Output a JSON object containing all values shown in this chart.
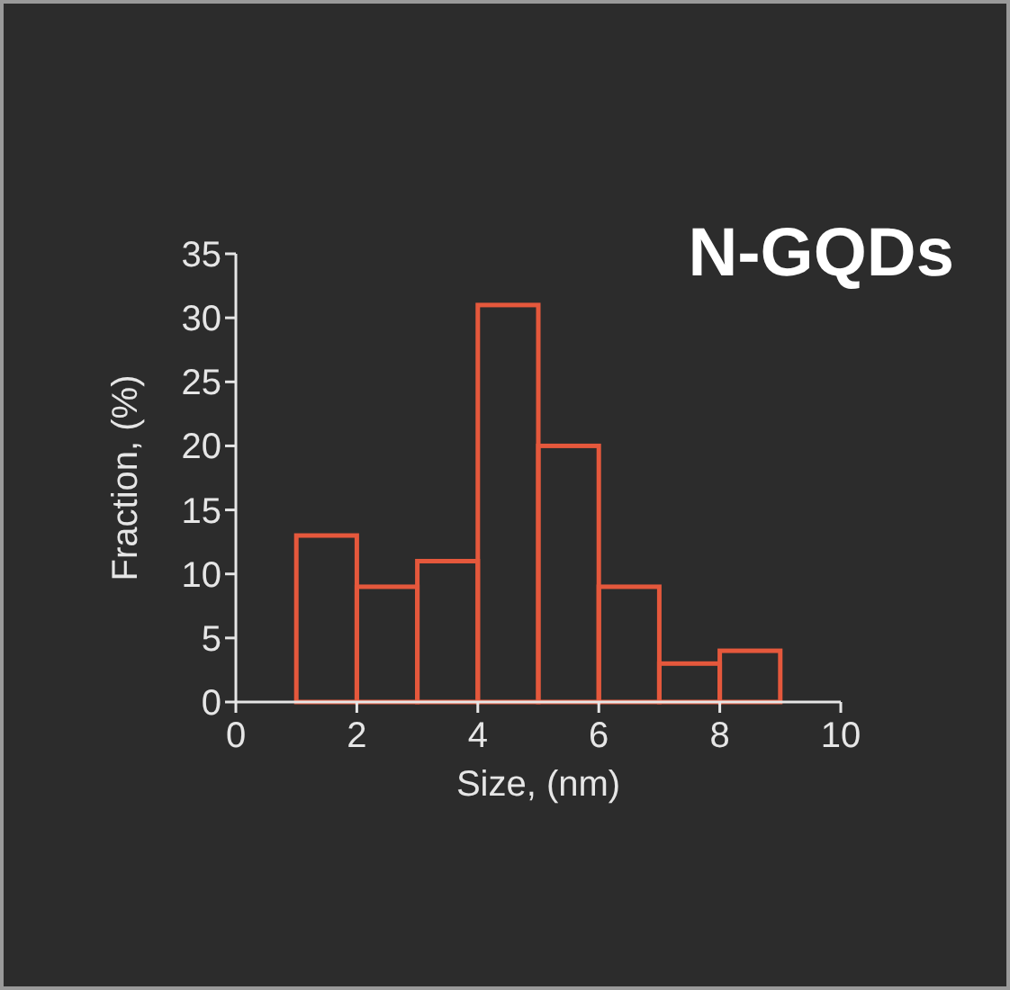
{
  "chart_data": {
    "type": "histogram",
    "title": "N-GQDs",
    "xlabel": "Size, (nm)",
    "ylabel": "Fraction, (%)",
    "bins": [
      1,
      2,
      3,
      4,
      5,
      6,
      7,
      8,
      9
    ],
    "values": [
      13,
      9,
      11,
      31,
      20,
      9,
      3,
      4
    ],
    "color": "#e5583c",
    "xlim": [
      0,
      10
    ],
    "xticks": [
      0,
      2,
      4,
      6,
      8,
      10
    ],
    "ylim": [
      0,
      35
    ],
    "yticks": [
      0,
      5,
      10,
      15,
      20,
      25,
      30,
      35
    ],
    "grid": false
  }
}
